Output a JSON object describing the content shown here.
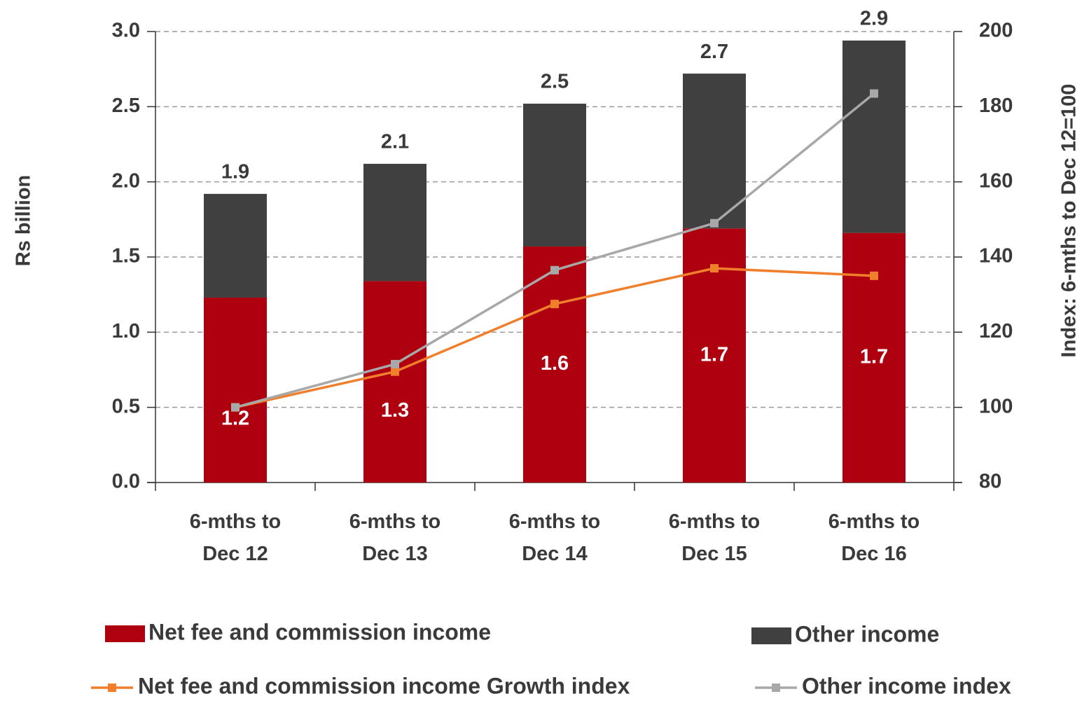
{
  "chart_data": {
    "type": "bar",
    "stacked": true,
    "categories": [
      "6-mths to Dec 12",
      "6-mths to Dec 13",
      "6-mths to Dec 14",
      "6-mths to Dec 15",
      "6-mths to Dec 16"
    ],
    "series": [
      {
        "name": "Net fee and commission income",
        "color": "#af0010",
        "values": [
          1.23,
          1.34,
          1.57,
          1.69,
          1.66
        ],
        "value_labels": [
          "1.2",
          "1.3",
          "1.6",
          "1.7",
          "1.7"
        ]
      },
      {
        "name": "Other income",
        "color": "#404040",
        "values": [
          0.69,
          0.78,
          0.95,
          1.03,
          1.28
        ]
      },
      {
        "name": "Net fee and commission income Growth index",
        "type": "line",
        "axis": "y2",
        "color": "#f07f2c",
        "values": [
          100,
          109.5,
          127.5,
          137,
          135
        ]
      },
      {
        "name": "Other income index",
        "type": "line",
        "axis": "y2",
        "color": "#a8a8a8",
        "values": [
          100,
          111.5,
          136.5,
          149,
          183.5
        ]
      }
    ],
    "total_labels": [
      "1.9",
      "2.1",
      "2.5",
      "2.7",
      "2.9"
    ],
    "ylabel": "Rs billion",
    "y2label": "Index: 6-mths to Dec 12=100",
    "ylim": [
      0,
      3
    ],
    "yticks": [
      {
        "value": 0,
        "label": "0.0"
      },
      0.5,
      {
        "value": 1,
        "label": "1.0"
      },
      1.5,
      {
        "value": 2,
        "label": "2.0"
      },
      2.5,
      {
        "value": 3,
        "label": "3.0"
      }
    ],
    "y2lim": [
      80,
      200
    ],
    "y2ticks": [
      80,
      100,
      120,
      140,
      160,
      180,
      200
    ],
    "grid": true
  }
}
